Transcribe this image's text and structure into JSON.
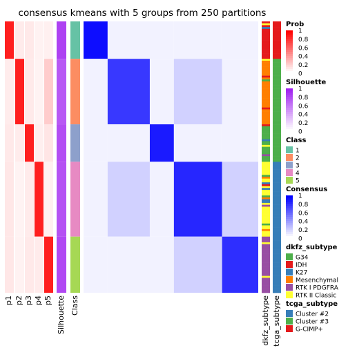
{
  "chart_data": {
    "type": "heatmap",
    "title": "consensus kmeans with 5 groups from 250 partitions",
    "column_labels": [
      "p1",
      "p2",
      "p3",
      "p4",
      "p5",
      "Silhouette",
      "Class"
    ],
    "row_annotation_labels": [
      "dkfz_subtype",
      "tcga_subtype"
    ],
    "groups": [
      {
        "class": "1",
        "size": 20
      },
      {
        "class": "2",
        "size": 35
      },
      {
        "class": "3",
        "size": 20
      },
      {
        "class": "4",
        "size": 40
      },
      {
        "class": "5",
        "size": 30
      }
    ],
    "consensus_blocks": [
      {
        "class": "1",
        "mean": 0.95
      },
      {
        "class": "2",
        "mean": 0.78
      },
      {
        "class": "3",
        "mean": 0.9
      },
      {
        "class": "4",
        "mean": 0.85
      },
      {
        "class": "5",
        "mean": 0.82
      }
    ],
    "legends": [
      {
        "title": "Prob",
        "type": "gradient",
        "low": "#ffffff",
        "high": "#ff0000",
        "ticks": [
          "1",
          "0.8",
          "0.6",
          "0.4",
          "0.2",
          "0"
        ]
      },
      {
        "title": "Silhouette",
        "type": "gradient",
        "low": "#ffffff",
        "high": "#a020f0",
        "ticks": [
          "1",
          "0.8",
          "0.6",
          "0.4",
          "0.2",
          "0"
        ]
      },
      {
        "title": "Class",
        "type": "discrete",
        "items": [
          {
            "label": "1",
            "color": "#66c2a5"
          },
          {
            "label": "2",
            "color": "#fc8d62"
          },
          {
            "label": "3",
            "color": "#8da0cb"
          },
          {
            "label": "4",
            "color": "#e78ac3"
          },
          {
            "label": "5",
            "color": "#a6d854"
          }
        ]
      },
      {
        "title": "Consensus",
        "type": "gradient",
        "low": "#ffffff",
        "high": "#0000ff",
        "ticks": [
          "1",
          "0.8",
          "0.6",
          "0.4",
          "0.2",
          "0"
        ]
      },
      {
        "title": "dkfz_subtype",
        "type": "discrete",
        "items": [
          {
            "label": "G34",
            "color": "#4daf4a"
          },
          {
            "label": "IDH",
            "color": "#e41a1c"
          },
          {
            "label": "K27",
            "color": "#377eb8"
          },
          {
            "label": "Mesenchymal",
            "color": "#ff7f00"
          },
          {
            "label": "RTK I PDGFRA",
            "color": "#984ea3"
          },
          {
            "label": "RTK II Classic",
            "color": "#ffff33"
          }
        ]
      },
      {
        "title": "tcga_subtype",
        "type": "discrete",
        "items": [
          {
            "label": "Cluster #2",
            "color": "#377eb8"
          },
          {
            "label": "Cluster #3",
            "color": "#4daf4a"
          },
          {
            "label": "G-CIMP+",
            "color": "#e41a1c"
          }
        ]
      }
    ]
  }
}
